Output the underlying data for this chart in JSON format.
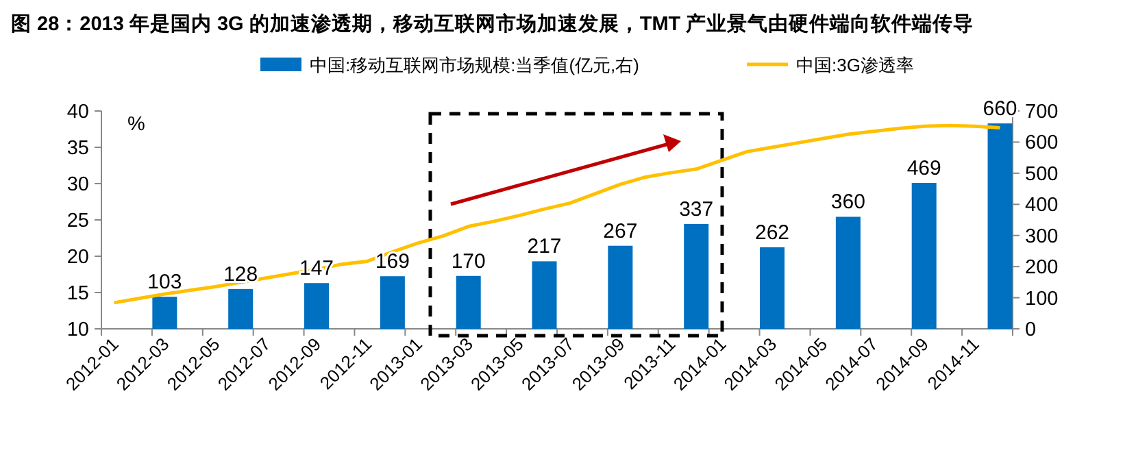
{
  "chart_data": {
    "type": "bar",
    "title": "图 28：2013 年是国内 3G 的加速渗透期，移动互联网市场加速发展，TMT 产业景气由硬件端向软件端传导",
    "ylabel": "%",
    "categories": [
      "2012-01",
      null,
      "2012-03",
      null,
      "2012-05",
      null,
      "2012-07",
      null,
      "2012-09",
      null,
      "2012-11",
      null,
      "2013-01",
      null,
      "2013-03",
      null,
      "2013-05",
      null,
      "2013-07",
      null,
      "2013-09",
      null,
      "2013-11",
      null,
      "2014-01",
      null,
      "2014-03",
      null,
      "2014-05",
      null,
      "2014-07",
      null,
      "2014-09",
      null,
      "2014-11",
      null
    ],
    "series": [
      {
        "name": "中国:移动互联网市场规模:当季值(亿元,右)",
        "axis": "y2",
        "color": "#0070c0",
        "values": [
          null,
          null,
          103,
          null,
          null,
          128,
          null,
          null,
          147,
          null,
          null,
          169,
          null,
          null,
          170,
          null,
          null,
          217,
          null,
          null,
          267,
          null,
          null,
          337,
          null,
          null,
          262,
          null,
          null,
          360,
          null,
          null,
          469,
          null,
          null,
          660
        ],
        "value_labels": [
          null,
          null,
          "103",
          null,
          null,
          "128",
          null,
          null,
          "147",
          null,
          null,
          "169",
          null,
          null,
          "170",
          null,
          null,
          "217",
          null,
          null,
          "267",
          null,
          null,
          "337",
          null,
          null,
          "262",
          null,
          null,
          "360",
          null,
          null,
          "469",
          null,
          null,
          "660"
        ]
      },
      {
        "name": "中国:3G渗透率",
        "type": "line",
        "axis": "y",
        "color": "#ffc000",
        "values": [
          13.6,
          14.2,
          14.8,
          15.3,
          15.8,
          16.4,
          17.0,
          17.6,
          18.2,
          18.9,
          19.3,
          20.6,
          21.8,
          22.8,
          24.1,
          24.8,
          25.6,
          26.5,
          27.3,
          28.6,
          29.9,
          30.9,
          31.5,
          32.0,
          33.2,
          34.4,
          35.0,
          35.6,
          36.2,
          36.8,
          37.2,
          37.6,
          37.9,
          38.0,
          37.9,
          37.7
        ]
      }
    ],
    "ylim": [
      10,
      40
    ],
    "yticks": [
      10,
      15,
      20,
      25,
      30,
      35,
      40
    ],
    "y2lim": [
      0,
      700
    ],
    "y2ticks": [
      0,
      100,
      200,
      300,
      400,
      500,
      600,
      700
    ],
    "legend": "top",
    "grid": false,
    "marker": "none"
  }
}
